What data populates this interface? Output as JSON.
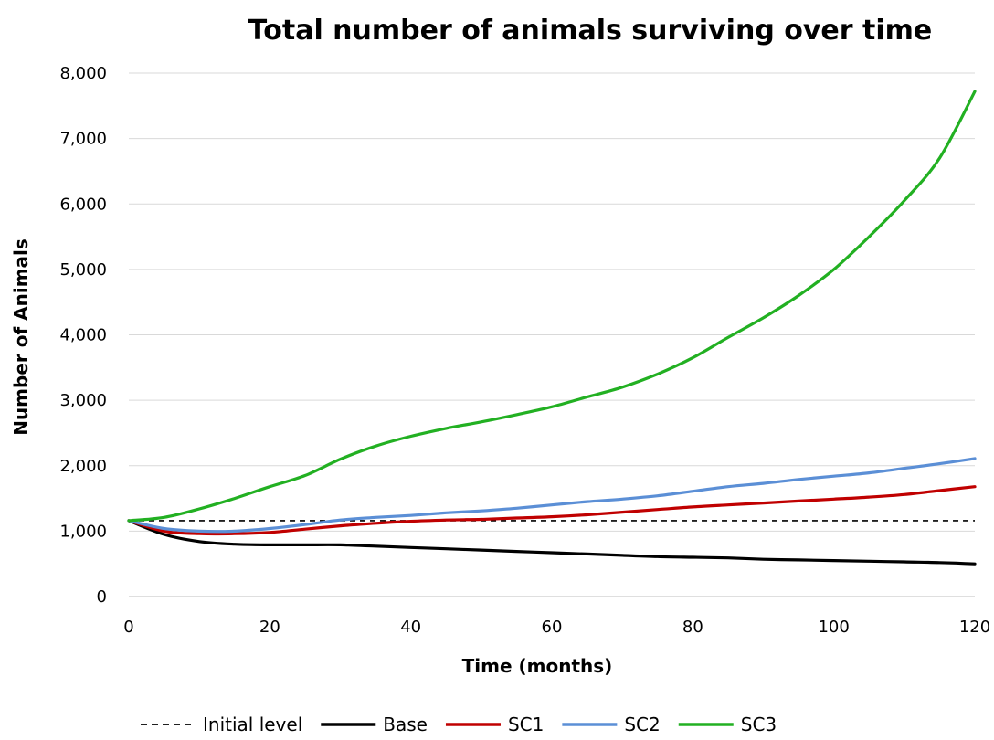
{
  "chart_data": {
    "type": "line",
    "title": "Total number of animals surviving over time",
    "xlabel": "Time (months)",
    "ylabel": "Number of Animals",
    "xlim": [
      0,
      120
    ],
    "ylim": [
      0,
      8000
    ],
    "x_ticks": [
      0,
      20,
      40,
      60,
      80,
      100,
      120
    ],
    "x_tick_labels": [
      "0",
      "20",
      "40",
      "60",
      "80",
      "100",
      "120"
    ],
    "y_ticks": [
      0,
      1000,
      2000,
      3000,
      4000,
      5000,
      6000,
      7000,
      8000
    ],
    "y_tick_labels": [
      "0",
      "1,000",
      "2,000",
      "3,000",
      "4,000",
      "5,000",
      "6,000",
      "7,000",
      "8,000"
    ],
    "grid": "horizontal",
    "legend_position": "bottom",
    "x": [
      0,
      5,
      10,
      15,
      20,
      25,
      30,
      35,
      40,
      45,
      50,
      55,
      60,
      65,
      70,
      75,
      80,
      85,
      90,
      95,
      100,
      105,
      110,
      115,
      120
    ],
    "series": [
      {
        "name": "Initial level",
        "color": "#000000",
        "dash": "dashed",
        "values": [
          1160,
          1160,
          1160,
          1160,
          1160,
          1160,
          1160,
          1160,
          1160,
          1160,
          1160,
          1160,
          1160,
          1160,
          1160,
          1160,
          1160,
          1160,
          1160,
          1160,
          1160,
          1160,
          1160,
          1160,
          1160
        ]
      },
      {
        "name": "Base",
        "color": "#000000",
        "dash": "solid",
        "values": [
          1160,
          950,
          840,
          800,
          790,
          790,
          790,
          770,
          750,
          730,
          710,
          690,
          670,
          650,
          630,
          610,
          600,
          590,
          570,
          560,
          550,
          540,
          530,
          520,
          500
        ]
      },
      {
        "name": "SC1",
        "color": "#c00000",
        "dash": "solid",
        "values": [
          1160,
          1000,
          960,
          960,
          980,
          1030,
          1080,
          1120,
          1150,
          1170,
          1180,
          1200,
          1220,
          1250,
          1290,
          1330,
          1370,
          1400,
          1430,
          1460,
          1490,
          1520,
          1560,
          1620,
          1680
        ]
      },
      {
        "name": "SC2",
        "color": "#5b8fd6",
        "dash": "solid",
        "values": [
          1160,
          1040,
          1000,
          1000,
          1040,
          1100,
          1170,
          1210,
          1240,
          1280,
          1310,
          1350,
          1400,
          1450,
          1490,
          1540,
          1610,
          1680,
          1730,
          1790,
          1840,
          1890,
          1960,
          2030,
          2110
        ]
      },
      {
        "name": "SC3",
        "color": "#22b022",
        "dash": "solid",
        "values": [
          1160,
          1210,
          1340,
          1500,
          1680,
          1850,
          2100,
          2300,
          2450,
          2570,
          2670,
          2780,
          2900,
          3050,
          3200,
          3400,
          3650,
          3960,
          4260,
          4600,
          5000,
          5500,
          6050,
          6700,
          7720
        ]
      }
    ]
  }
}
